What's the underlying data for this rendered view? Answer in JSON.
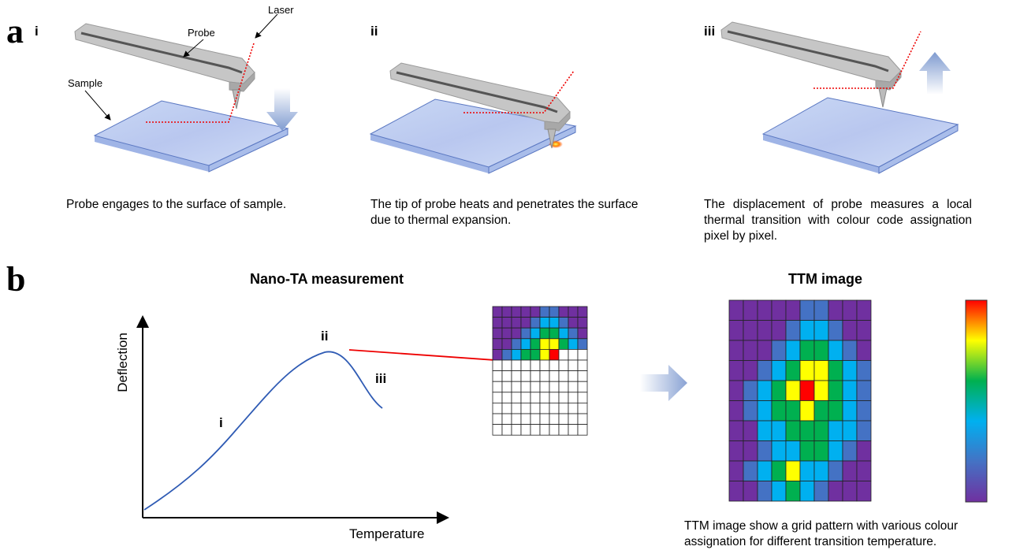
{
  "panel_a": {
    "label": "a",
    "labels": {
      "probe": "Probe",
      "laser": "Laser",
      "sample": "Sample"
    },
    "steps": [
      {
        "numeral": "i",
        "caption": "Probe engages to the surface of sample."
      },
      {
        "numeral": "ii",
        "caption": "The tip of probe heats and penetrates the surface due to thermal expansion."
      },
      {
        "numeral": "iii",
        "caption": "The displacement of probe measures a local thermal transition with colour code assignation pixel by pixel."
      }
    ]
  },
  "panel_b": {
    "label": "b",
    "chart_title": "Nano-TA measurement",
    "y_label": "Deflection",
    "x_label": "Temperature",
    "curve_labels": [
      "i",
      "ii",
      "iii"
    ],
    "ttm_title": "TTM image",
    "ttm_caption": "TTM image show a grid pattern with various colour assignation for different transition temperature."
  }
}
